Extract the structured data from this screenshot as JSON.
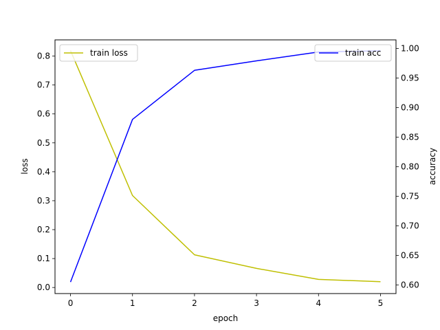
{
  "chart_data": {
    "type": "line",
    "title": "",
    "xlabel": "epoch",
    "ylabel_left": "loss",
    "ylabel_right": "accuracy",
    "x": [
      0,
      1,
      2,
      3,
      4,
      5
    ],
    "xlim": [
      -0.25,
      5.25
    ],
    "x_ticks": [
      0,
      1,
      2,
      3,
      4,
      5
    ],
    "ylim_left": [
      -0.021,
      0.856
    ],
    "ylim_right": [
      0.5855,
      1.0145
    ],
    "y_ticks_left": [
      0.0,
      0.1,
      0.2,
      0.3,
      0.4,
      0.5,
      0.6,
      0.7,
      0.8
    ],
    "y_ticks_right": [
      0.6,
      0.65,
      0.7,
      0.75,
      0.8,
      0.85,
      0.9,
      0.95,
      1.0
    ],
    "grid": false,
    "series": [
      {
        "name": "train loss",
        "axis": "left",
        "color": "#bfbf00",
        "values": [
          0.819,
          0.318,
          0.113,
          0.066,
          0.028,
          0.02
        ],
        "legend": "top-left"
      },
      {
        "name": "train acc",
        "axis": "right",
        "color": "#0000ff",
        "values": [
          0.605,
          0.88,
          0.963,
          0.979,
          0.994,
          0.996
        ],
        "legend": "top-right"
      }
    ]
  }
}
